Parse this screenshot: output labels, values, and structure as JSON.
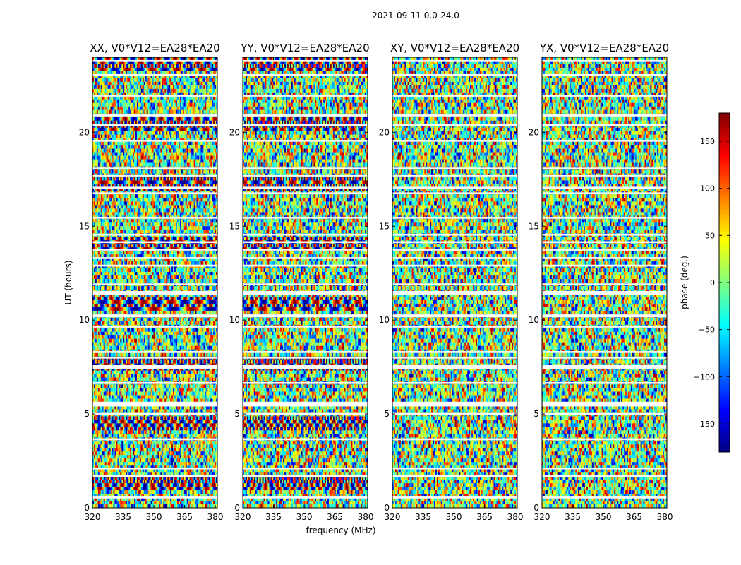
{
  "chart_data": {
    "type": "heatmap",
    "suptitle": "2021-09-11 0.0-24.0",
    "xlabel": "frequency (MHz)",
    "ylabel": "UT (hours)",
    "xlim": [
      320,
      381
    ],
    "ylim": [
      0,
      24
    ],
    "x_ticks": [
      320,
      335,
      350,
      365,
      380
    ],
    "x_tick_labels": [
      "320",
      "335",
      "350",
      "365",
      "380"
    ],
    "y_ticks": [
      0,
      5,
      10,
      15,
      20
    ],
    "y_tick_labels": [
      "0",
      "5",
      "10",
      "15",
      "20"
    ],
    "panels": [
      {
        "title": "XX, V0*V12=EA28*EA20",
        "polarization": "XX"
      },
      {
        "title": "YY, V0*V12=EA28*EA20",
        "polarization": "YY"
      },
      {
        "title": "XY, V0*V12=EA28*EA20",
        "polarization": "XY"
      },
      {
        "title": "YX, V0*V12=EA28*EA20",
        "polarization": "YX"
      }
    ],
    "colorbar": {
      "label": "phase (deg.)",
      "colormap": "jet",
      "range": [
        -180,
        180
      ],
      "ticks": [
        150,
        100,
        50,
        0,
        -50,
        -100,
        -150
      ],
      "tick_labels": [
        "150",
        "100",
        "50",
        "0",
        "−50",
        "−100",
        "−150"
      ]
    },
    "flagged_time_bands_hours": [
      [
        0.5,
        0.6
      ],
      [
        1.65,
        1.75
      ],
      [
        2.05,
        2.12
      ],
      [
        3.6,
        3.7
      ],
      [
        4.95,
        5.05
      ],
      [
        5.4,
        5.65
      ],
      [
        6.6,
        6.7
      ],
      [
        7.4,
        7.6
      ],
      [
        7.95,
        8.05
      ],
      [
        8.25,
        8.35
      ],
      [
        9.6,
        9.7
      ],
      [
        10.15,
        10.3
      ],
      [
        11.35,
        11.55
      ],
      [
        11.85,
        11.95
      ],
      [
        12.85,
        12.95
      ],
      [
        13.25,
        13.35
      ],
      [
        13.7,
        13.8
      ],
      [
        14.1,
        14.2
      ],
      [
        14.5,
        14.6
      ],
      [
        15.4,
        15.5
      ],
      [
        16.7,
        16.8
      ],
      [
        17.0,
        17.1
      ],
      [
        17.65,
        17.72
      ],
      [
        18.05,
        18.12
      ],
      [
        19.5,
        19.6
      ],
      [
        20.35,
        20.45
      ],
      [
        20.85,
        20.95
      ],
      [
        21.9,
        22.0
      ],
      [
        23.0,
        23.1
      ],
      [
        23.75,
        23.85
      ]
    ]
  }
}
